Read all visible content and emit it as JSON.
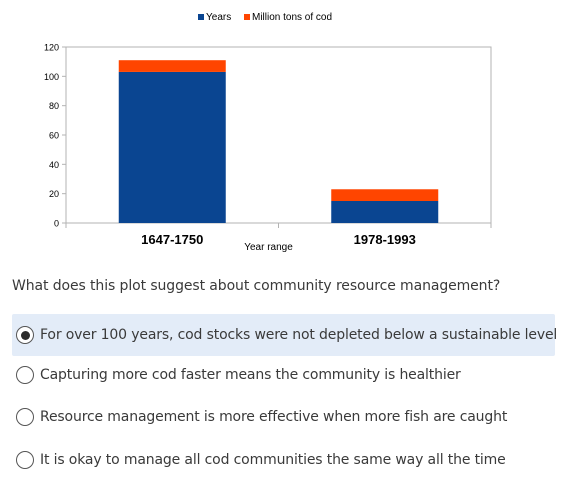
{
  "chart_data": {
    "type": "bar",
    "stacked": true,
    "categories": [
      "1647-1750",
      "1978-1993"
    ],
    "series": [
      {
        "name": "Years",
        "values": [
          103,
          15
        ],
        "color": "#0a4591"
      },
      {
        "name": "Million tons of cod",
        "values": [
          8,
          8
        ],
        "color": "#ff4500"
      }
    ],
    "xlabel": "Year range",
    "ylabel": "",
    "ylim": [
      0,
      120
    ],
    "yticks": [
      "0",
      "20",
      "40",
      "60",
      "80",
      "100",
      "120"
    ],
    "grid": false,
    "legend_position": "top-center"
  },
  "quiz": {
    "question": "What does this plot suggest about community resource management?",
    "options": [
      {
        "label": "For over 100 years, cod stocks were not depleted below a sustainable level",
        "selected": true
      },
      {
        "label": "Capturing more cod faster means the community is healthier",
        "selected": false
      },
      {
        "label": "Resource management is more effective when more fish are caught",
        "selected": false
      },
      {
        "label": "It is okay to manage all cod communities the same way all the time",
        "selected": false
      }
    ]
  }
}
